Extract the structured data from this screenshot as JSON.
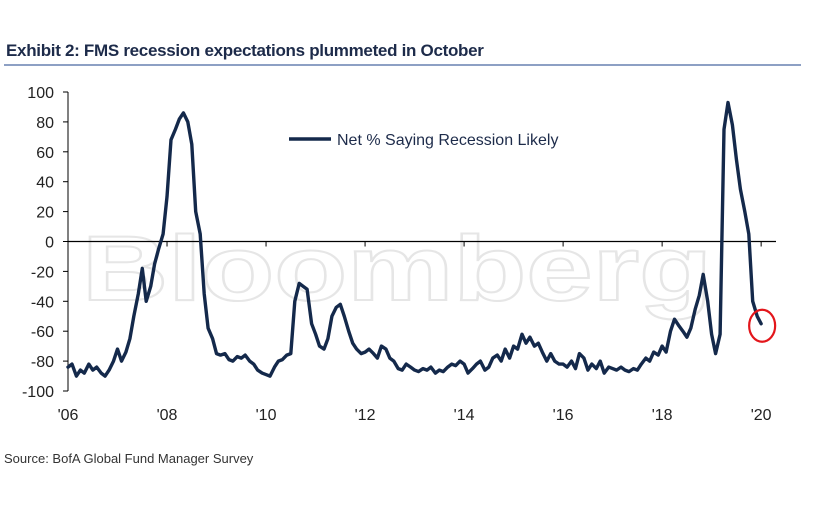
{
  "header": {
    "title": "Exhibit 2: FMS recession expectations plummeted in October"
  },
  "footer": {
    "source": "Source: BofA Global Fund Manager Survey"
  },
  "watermark": {
    "text": "Bloomberg"
  },
  "colors": {
    "series": "#14294b",
    "highlight": "#e3161b",
    "rule": "#8da0c4"
  },
  "chart_data": {
    "type": "line",
    "title": "Exhibit 2: FMS recession expectations plummeted in October",
    "xlabel": "",
    "ylabel": "",
    "xlim": [
      2006,
      2020.3
    ],
    "ylim": [
      -100,
      100
    ],
    "yticks": [
      100,
      80,
      60,
      40,
      20,
      0,
      -20,
      -40,
      -60,
      -80,
      -100
    ],
    "xticks": [
      {
        "value": 2006,
        "label": "'06"
      },
      {
        "value": 2008,
        "label": "'08"
      },
      {
        "value": 2010,
        "label": "'10"
      },
      {
        "value": 2012,
        "label": "'12"
      },
      {
        "value": 2014,
        "label": "'14"
      },
      {
        "value": 2016,
        "label": "'16"
      },
      {
        "value": 2018,
        "label": "'18"
      },
      {
        "value": 2020,
        "label": "'20"
      }
    ],
    "zero_line": true,
    "legend": {
      "position": "top-center"
    },
    "annotations": [
      {
        "type": "circle",
        "x": 2020.0,
        "y": -55
      }
    ],
    "series": [
      {
        "name": "Net % Saying Recession Likely",
        "x": [
          2006.0,
          2006.08,
          2006.17,
          2006.25,
          2006.33,
          2006.42,
          2006.5,
          2006.58,
          2006.67,
          2006.75,
          2006.83,
          2006.92,
          2007.0,
          2007.08,
          2007.17,
          2007.25,
          2007.33,
          2007.42,
          2007.5,
          2007.58,
          2007.67,
          2007.75,
          2007.83,
          2007.92,
          2008.0,
          2008.08,
          2008.17,
          2008.25,
          2008.33,
          2008.42,
          2008.5,
          2008.58,
          2008.67,
          2008.75,
          2008.83,
          2008.92,
          2009.0,
          2009.08,
          2009.17,
          2009.25,
          2009.33,
          2009.42,
          2009.5,
          2009.58,
          2009.67,
          2009.75,
          2009.83,
          2009.92,
          2010.0,
          2010.08,
          2010.17,
          2010.25,
          2010.33,
          2010.42,
          2010.5,
          2010.58,
          2010.67,
          2010.75,
          2010.83,
          2010.92,
          2011.0,
          2011.08,
          2011.17,
          2011.25,
          2011.33,
          2011.42,
          2011.5,
          2011.58,
          2011.67,
          2011.75,
          2011.83,
          2011.92,
          2012.0,
          2012.08,
          2012.17,
          2012.25,
          2012.33,
          2012.42,
          2012.5,
          2012.58,
          2012.67,
          2012.75,
          2012.83,
          2012.92,
          2013.0,
          2013.08,
          2013.17,
          2013.25,
          2013.33,
          2013.42,
          2013.5,
          2013.58,
          2013.67,
          2013.75,
          2013.83,
          2013.92,
          2014.0,
          2014.08,
          2014.17,
          2014.25,
          2014.33,
          2014.42,
          2014.5,
          2014.58,
          2014.67,
          2014.75,
          2014.83,
          2014.92,
          2015.0,
          2015.08,
          2015.17,
          2015.25,
          2015.33,
          2015.42,
          2015.5,
          2015.58,
          2015.67,
          2015.75,
          2015.83,
          2015.92,
          2016.0,
          2016.08,
          2016.17,
          2016.25,
          2016.33,
          2016.42,
          2016.5,
          2016.58,
          2016.67,
          2016.75,
          2016.83,
          2016.92,
          2017.0,
          2017.08,
          2017.17,
          2017.25,
          2017.33,
          2017.42,
          2017.5,
          2017.58,
          2017.67,
          2017.75,
          2017.83,
          2017.92,
          2018.0,
          2018.08,
          2018.17,
          2018.25,
          2018.33,
          2018.42,
          2018.5,
          2018.58,
          2018.67,
          2018.75,
          2018.83,
          2018.92,
          2019.0,
          2019.08,
          2019.17,
          2019.25,
          2019.33,
          2019.42,
          2019.5,
          2019.58,
          2019.67,
          2019.75,
          2019.83,
          2019.92,
          2020.0
        ],
        "y": [
          -84,
          -82,
          -90,
          -86,
          -88,
          -82,
          -86,
          -84,
          -88,
          -90,
          -86,
          -80,
          -72,
          -80,
          -74,
          -65,
          -50,
          -35,
          -18,
          -40,
          -30,
          -15,
          -5,
          5,
          30,
          68,
          75,
          82,
          86,
          80,
          65,
          20,
          5,
          -35,
          -58,
          -65,
          -75,
          -76,
          -75,
          -79,
          -80,
          -77,
          -78,
          -76,
          -80,
          -82,
          -86,
          -88,
          -89,
          -90,
          -84,
          -80,
          -79,
          -76,
          -75,
          -40,
          -28,
          -30,
          -32,
          -55,
          -62,
          -70,
          -72,
          -65,
          -50,
          -44,
          -42,
          -50,
          -60,
          -68,
          -72,
          -75,
          -74,
          -72,
          -75,
          -78,
          -70,
          -72,
          -78,
          -80,
          -85,
          -86,
          -82,
          -84,
          -86,
          -87,
          -85,
          -86,
          -84,
          -88,
          -86,
          -87,
          -84,
          -82,
          -83,
          -80,
          -82,
          -88,
          -85,
          -82,
          -80,
          -86,
          -84,
          -78,
          -76,
          -80,
          -72,
          -78,
          -70,
          -72,
          -62,
          -68,
          -64,
          -70,
          -68,
          -74,
          -80,
          -75,
          -80,
          -82,
          -82,
          -84,
          -80,
          -85,
          -75,
          -78,
          -86,
          -82,
          -85,
          -80,
          -88,
          -84,
          -85,
          -86,
          -84,
          -86,
          -87,
          -85,
          -86,
          -82,
          -78,
          -80,
          -74,
          -76,
          -70,
          -74,
          -60,
          -52,
          -56,
          -60,
          -64,
          -58,
          -45,
          -36,
          -22,
          -40,
          -62,
          -75,
          -62,
          75,
          93,
          78,
          55,
          35,
          20,
          5,
          -40,
          -50,
          -55
        ]
      }
    ]
  }
}
